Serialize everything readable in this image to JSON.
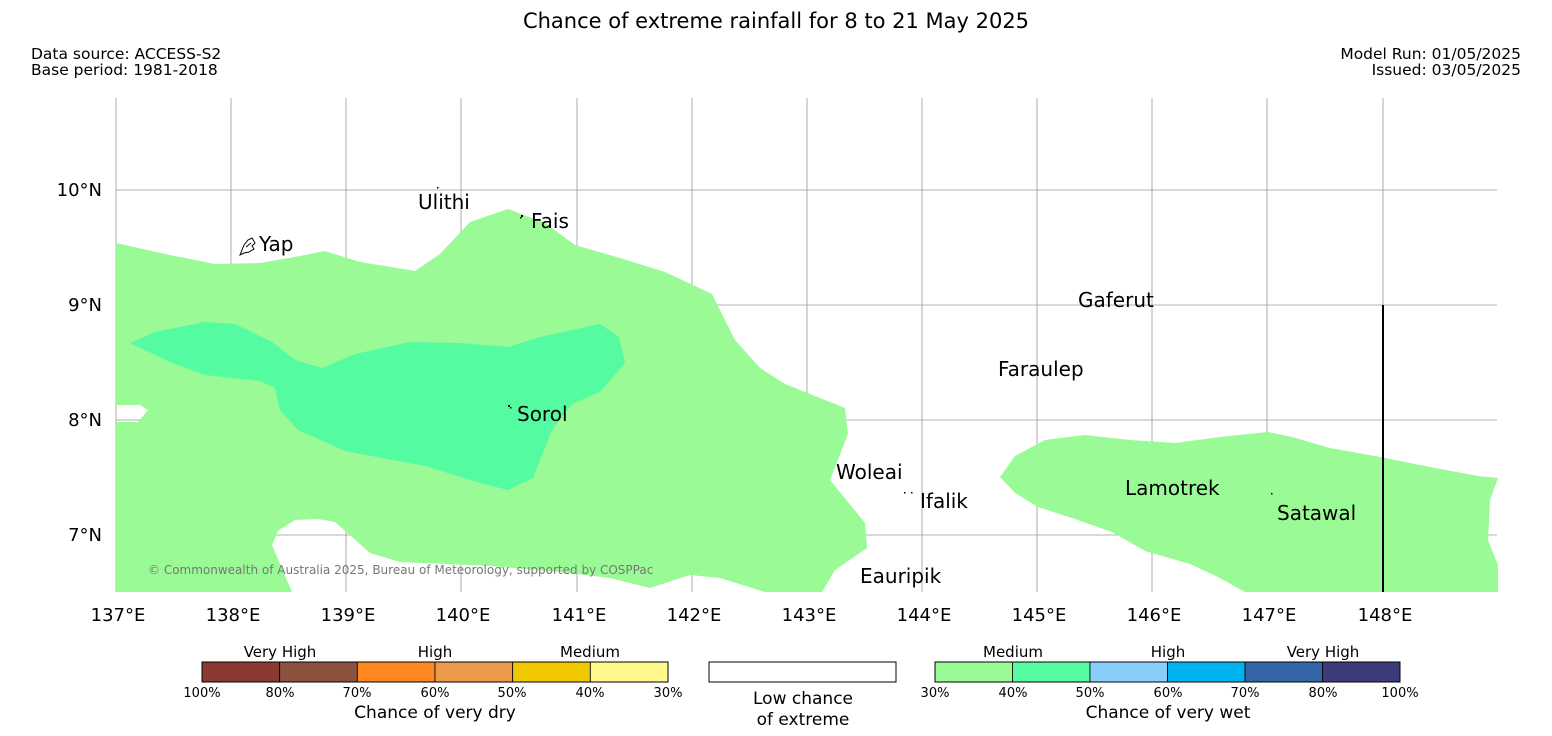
{
  "title": "Chance of extreme rainfall for 8 to 21 May 2025",
  "data_source": "Data source: ACCESS-S2",
  "base_period": "Base period: 1981-2018",
  "model_run": "Model Run: 01/05/2025",
  "issued": "Issued: 03/05/2025",
  "copyright": "© Commonwealth of Australia 2025, Bureau of Meteorology, supported by COSPPac",
  "lon_labels": [
    "137°E",
    "138°E",
    "139°E",
    "140°E",
    "141°E",
    "142°E",
    "143°E",
    "144°E",
    "145°E",
    "146°E",
    "147°E",
    "148°E"
  ],
  "lat_labels": [
    "10°N",
    "9°N",
    "8°N",
    "7°N"
  ],
  "places": [
    "Ulithi",
    "Fais",
    "Yap",
    "Gaferut",
    "Faraulep",
    "Sorol",
    "Woleai",
    "Ifalik",
    "Lamotrek",
    "Satawal",
    "Eauripik"
  ],
  "legend_dry": {
    "caption": "Chance of very dry",
    "groups": [
      "Very High",
      "High",
      "Medium"
    ],
    "ticks": [
      "100%",
      "80%",
      "70%",
      "60%",
      "50%",
      "40%",
      "30%"
    ],
    "colors": [
      "#8b3a31",
      "#8c5240",
      "#ff8722",
      "#eb9a4a",
      "#f0c800",
      "#fff88a"
    ]
  },
  "legend_low": {
    "line1": "Low chance",
    "line2": "of extreme",
    "color": "#ffffff"
  },
  "legend_wet": {
    "caption": "Chance of very wet",
    "groups": [
      "Medium",
      "High",
      "Very High"
    ],
    "ticks": [
      "30%",
      "40%",
      "50%",
      "60%",
      "70%",
      "80%",
      "100%"
    ],
    "colors": [
      "#9afa95",
      "#55fba0",
      "#87cff9",
      "#00b2ee",
      "#3565a6",
      "#3c3c7d"
    ]
  }
}
